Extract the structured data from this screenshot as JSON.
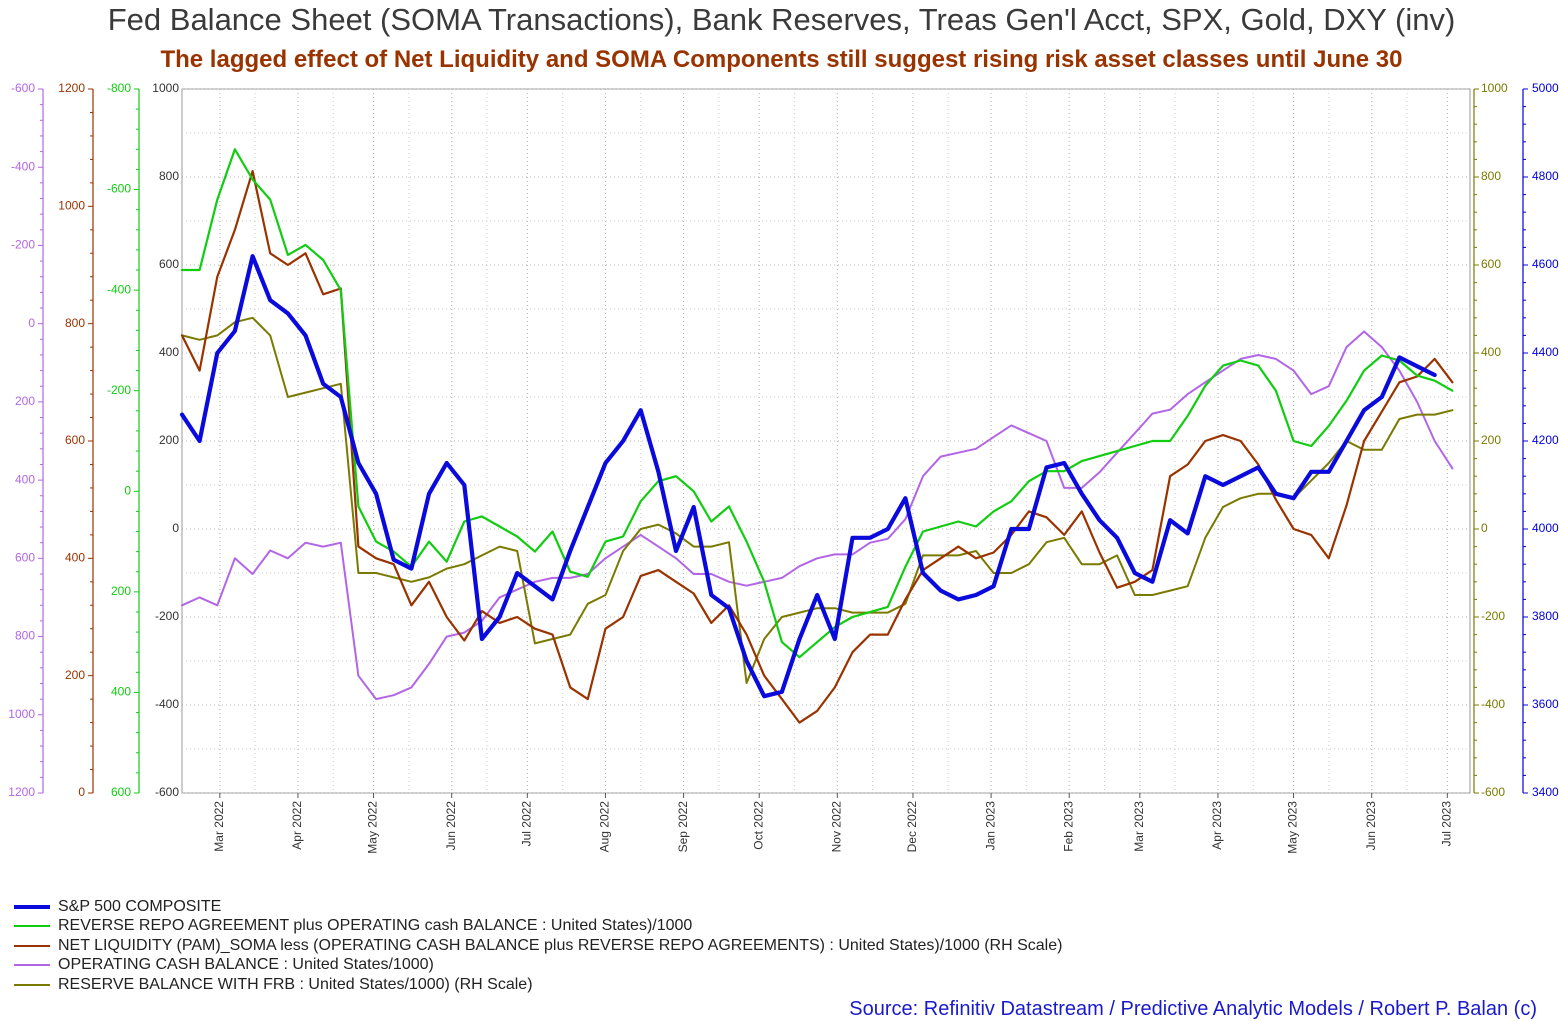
{
  "title": "Fed Balance Sheet (SOMA Transactions), Bank Reserves, Treas Gen'l Acct, SPX, Gold, DXY (inv)",
  "subtitle": "The lagged effect of Net Liquidity and SOMA Components still suggest rising risk asset classes until June 30",
  "source": "Source: Refinitiv Datastream / Predictive Analytic Models / Robert P. Balan (c)",
  "colors": {
    "spx": "#0a0adc",
    "green": "#11cc11",
    "brown": "#993300",
    "purple": "#b266e6",
    "olive": "#7a7a00",
    "blue_axis": "#0000dd"
  },
  "chart_data": {
    "type": "line",
    "x_labels": [
      "Mar 2022",
      "Apr 2022",
      "May 2022",
      "Jun 2022",
      "Jul 2022",
      "Aug 2022",
      "Sep 2022",
      "Oct 2022",
      "Nov 2022",
      "Dec 2022",
      "Jan 2023",
      "Feb 2023",
      "Mar 2023",
      "Apr 2023",
      "May 2023",
      "Jun 2023",
      "Jul 2023"
    ],
    "x_ticks": [
      "2022-03-01",
      "2022-04-01",
      "2022-05-01",
      "2022-06-01",
      "2022-07-01",
      "2022-08-01",
      "2022-09-01",
      "2022-10-01",
      "2022-11-01",
      "2022-12-01",
      "2023-01-01",
      "2023-02-01",
      "2023-03-01",
      "2023-04-01",
      "2023-05-01",
      "2023-06-01",
      "2023-07-01"
    ],
    "x_range": [
      "2022-02-14",
      "2023-07-10"
    ],
    "grid": true,
    "legend_position": "bottom-left",
    "axes": {
      "purple_inv": {
        "ticks": [
          "-600",
          "-400",
          "-200",
          "0",
          "200",
          "400",
          "600",
          "800",
          "1000",
          "1200"
        ],
        "range": [
          -600,
          1200
        ],
        "inverted": true
      },
      "brown_left": {
        "ticks": [
          "1200",
          "1000",
          "800",
          "600",
          "400",
          "200",
          "0"
        ],
        "range": [
          0,
          1200
        ]
      },
      "green_inv": {
        "ticks": [
          "-800",
          "-600",
          "-400",
          "-200",
          "0",
          "200",
          "400",
          "600"
        ],
        "range": [
          -800,
          600
        ],
        "inverted": true
      },
      "main_left": {
        "ticks": [
          "1000",
          "800",
          "600",
          "400",
          "200",
          "0",
          "-200",
          "-400",
          "-600"
        ],
        "range": [
          -600,
          1000
        ]
      },
      "olive_right": {
        "ticks": [
          "1000",
          "800",
          "600",
          "400",
          "200",
          "0",
          "-200",
          "-400",
          "-600"
        ],
        "range": [
          -600,
          1000
        ]
      },
      "spx_right": {
        "ticks": [
          "5000",
          "4800",
          "4600",
          "4400",
          "4200",
          "4000",
          "3800",
          "3600",
          "3400"
        ],
        "range": [
          3400,
          5000
        ]
      }
    },
    "series": [
      {
        "name": "S&P 500 COMPOSITE",
        "axis": "spx_right",
        "x": [
          "2022-02-14",
          "2022-02-21",
          "2022-02-28",
          "2022-03-07",
          "2022-03-14",
          "2022-03-21",
          "2022-03-28",
          "2022-04-04",
          "2022-04-11",
          "2022-04-18",
          "2022-04-25",
          "2022-05-02",
          "2022-05-09",
          "2022-05-16",
          "2022-05-23",
          "2022-05-30",
          "2022-06-06",
          "2022-06-13",
          "2022-06-20",
          "2022-06-27",
          "2022-07-04",
          "2022-07-11",
          "2022-07-18",
          "2022-07-25",
          "2022-08-01",
          "2022-08-08",
          "2022-08-15",
          "2022-08-22",
          "2022-08-29",
          "2022-09-05",
          "2022-09-12",
          "2022-09-19",
          "2022-09-26",
          "2022-10-03",
          "2022-10-10",
          "2022-10-17",
          "2022-10-24",
          "2022-10-31",
          "2022-11-07",
          "2022-11-14",
          "2022-11-21",
          "2022-11-28",
          "2022-12-05",
          "2022-12-12",
          "2022-12-19",
          "2022-12-26",
          "2023-01-02",
          "2023-01-09",
          "2023-01-16",
          "2023-01-23",
          "2023-01-30",
          "2023-02-06",
          "2023-02-13",
          "2023-02-20",
          "2023-02-27",
          "2023-03-06",
          "2023-03-13",
          "2023-03-20",
          "2023-03-27",
          "2023-04-03",
          "2023-04-10",
          "2023-04-17",
          "2023-04-24",
          "2023-05-01",
          "2023-05-08",
          "2023-05-15",
          "2023-05-22",
          "2023-05-29",
          "2023-06-05",
          "2023-06-12",
          "2023-06-19",
          "2023-06-26"
        ],
        "y": [
          4260,
          4200,
          4400,
          4450,
          4620,
          4520,
          4490,
          4440,
          4330,
          4300,
          4150,
          4080,
          3930,
          3910,
          4080,
          4150,
          4100,
          3750,
          3800,
          3900,
          3870,
          3840,
          3950,
          4050,
          4150,
          4200,
          4270,
          4130,
          3950,
          4050,
          3850,
          3820,
          3700,
          3620,
          3630,
          3750,
          3850,
          3750,
          3980,
          3980,
          4000,
          4070,
          3900,
          3860,
          3840,
          3850,
          3870,
          4000,
          4000,
          4140,
          4150,
          4080,
          4020,
          3980,
          3900,
          3880,
          4020,
          3990,
          4120,
          4100,
          4120,
          4140,
          4080,
          4070,
          4130,
          4130,
          4200,
          4270,
          4300,
          4390,
          4370,
          4350
        ]
      },
      {
        "name": "REVERSE REPO AGREEMENT plus OPERATING cash BALANCE : United States)/1000",
        "axis": "green_inv",
        "x": [
          "2022-02-14",
          "2022-02-21",
          "2022-02-28",
          "2022-03-07",
          "2022-03-14",
          "2022-03-21",
          "2022-03-28",
          "2022-04-04",
          "2022-04-11",
          "2022-04-18",
          "2022-04-25",
          "2022-05-02",
          "2022-05-09",
          "2022-05-16",
          "2022-05-23",
          "2022-05-30",
          "2022-06-06",
          "2022-06-13",
          "2022-06-20",
          "2022-06-27",
          "2022-07-04",
          "2022-07-11",
          "2022-07-18",
          "2022-07-25",
          "2022-08-01",
          "2022-08-08",
          "2022-08-15",
          "2022-08-22",
          "2022-08-29",
          "2022-09-05",
          "2022-09-12",
          "2022-09-19",
          "2022-09-26",
          "2022-10-03",
          "2022-10-10",
          "2022-10-17",
          "2022-10-24",
          "2022-10-31",
          "2022-11-07",
          "2022-11-14",
          "2022-11-21",
          "2022-11-28",
          "2022-12-05",
          "2022-12-12",
          "2022-12-19",
          "2022-12-26",
          "2023-01-02",
          "2023-01-09",
          "2023-01-16",
          "2023-01-23",
          "2023-01-30",
          "2023-02-06",
          "2023-02-13",
          "2023-02-20",
          "2023-02-27",
          "2023-03-06",
          "2023-03-13",
          "2023-03-20",
          "2023-03-27",
          "2023-04-03",
          "2023-04-10",
          "2023-04-17",
          "2023-04-24",
          "2023-05-01",
          "2023-05-08",
          "2023-05-15",
          "2023-05-22",
          "2023-05-29",
          "2023-06-05",
          "2023-06-12",
          "2023-06-19",
          "2023-06-26",
          "2023-07-03"
        ],
        "y": [
          -440,
          -440,
          -580,
          -680,
          -620,
          -580,
          -470,
          -490,
          -460,
          -400,
          30,
          100,
          120,
          150,
          100,
          140,
          60,
          50,
          70,
          90,
          120,
          80,
          160,
          170,
          100,
          90,
          20,
          -20,
          -30,
          0,
          60,
          30,
          100,
          180,
          300,
          330,
          300,
          270,
          250,
          240,
          230,
          150,
          80,
          70,
          60,
          70,
          40,
          20,
          -20,
          -40,
          -40,
          -60,
          -70,
          -80,
          -90,
          -100,
          -100,
          -150,
          -210,
          -250,
          -260,
          -250,
          -200,
          -100,
          -90,
          -130,
          -180,
          -240,
          -270,
          -260,
          -230,
          -220,
          -200
        ]
      },
      {
        "name": "NET LIQUIDITY (PAM)_SOMA less (OPERATING CASH BALANCE plus REVERSE REPO AGREEMENTS) : United States)/1000 (RH Scale)",
        "axis": "brown_left",
        "x": [
          "2022-02-14",
          "2022-02-21",
          "2022-02-28",
          "2022-03-07",
          "2022-03-14",
          "2022-03-21",
          "2022-03-28",
          "2022-04-04",
          "2022-04-11",
          "2022-04-18",
          "2022-04-25",
          "2022-05-02",
          "2022-05-09",
          "2022-05-16",
          "2022-05-23",
          "2022-05-30",
          "2022-06-06",
          "2022-06-13",
          "2022-06-20",
          "2022-06-27",
          "2022-07-04",
          "2022-07-11",
          "2022-07-18",
          "2022-07-25",
          "2022-08-01",
          "2022-08-08",
          "2022-08-15",
          "2022-08-22",
          "2022-08-29",
          "2022-09-05",
          "2022-09-12",
          "2022-09-19",
          "2022-09-26",
          "2022-10-03",
          "2022-10-10",
          "2022-10-17",
          "2022-10-24",
          "2022-10-31",
          "2022-11-07",
          "2022-11-14",
          "2022-11-21",
          "2022-11-28",
          "2022-12-05",
          "2022-12-12",
          "2022-12-19",
          "2022-12-26",
          "2023-01-02",
          "2023-01-09",
          "2023-01-16",
          "2023-01-23",
          "2023-01-30",
          "2023-02-06",
          "2023-02-13",
          "2023-02-20",
          "2023-02-27",
          "2023-03-06",
          "2023-03-13",
          "2023-03-20",
          "2023-03-27",
          "2023-04-03",
          "2023-04-10",
          "2023-04-17",
          "2023-04-24",
          "2023-05-01",
          "2023-05-08",
          "2023-05-15",
          "2023-05-22",
          "2023-05-29",
          "2023-06-05",
          "2023-06-12",
          "2023-06-19",
          "2023-06-26",
          "2023-07-03"
        ],
        "y": [
          780,
          720,
          880,
          960,
          1060,
          920,
          900,
          920,
          850,
          860,
          420,
          400,
          390,
          320,
          360,
          300,
          260,
          310,
          290,
          300,
          280,
          270,
          180,
          160,
          280,
          300,
          370,
          380,
          360,
          340,
          290,
          320,
          270,
          200,
          160,
          120,
          140,
          180,
          240,
          270,
          270,
          330,
          380,
          400,
          420,
          400,
          410,
          440,
          480,
          470,
          440,
          480,
          410,
          350,
          360,
          380,
          540,
          560,
          600,
          610,
          600,
          560,
          500,
          450,
          440,
          400,
          490,
          600,
          650,
          700,
          710,
          740,
          700
        ]
      },
      {
        "name": "OPERATING CASH BALANCE : United States/1000)",
        "axis": "purple_inv",
        "x": [
          "2022-02-14",
          "2022-02-21",
          "2022-02-28",
          "2022-03-07",
          "2022-03-14",
          "2022-03-21",
          "2022-03-28",
          "2022-04-04",
          "2022-04-11",
          "2022-04-18",
          "2022-04-25",
          "2022-05-02",
          "2022-05-09",
          "2022-05-16",
          "2022-05-23",
          "2022-05-30",
          "2022-06-06",
          "2022-06-13",
          "2022-06-20",
          "2022-06-27",
          "2022-07-04",
          "2022-07-11",
          "2022-07-18",
          "2022-07-25",
          "2022-08-01",
          "2022-08-08",
          "2022-08-15",
          "2022-08-22",
          "2022-08-29",
          "2022-09-05",
          "2022-09-12",
          "2022-09-19",
          "2022-09-26",
          "2022-10-03",
          "2022-10-10",
          "2022-10-17",
          "2022-10-24",
          "2022-10-31",
          "2022-11-07",
          "2022-11-14",
          "2022-11-21",
          "2022-11-28",
          "2022-12-05",
          "2022-12-12",
          "2022-12-19",
          "2022-12-26",
          "2023-01-02",
          "2023-01-09",
          "2023-01-16",
          "2023-01-23",
          "2023-01-30",
          "2023-02-06",
          "2023-02-13",
          "2023-02-20",
          "2023-02-27",
          "2023-03-06",
          "2023-03-13",
          "2023-03-20",
          "2023-03-27",
          "2023-04-03",
          "2023-04-10",
          "2023-04-17",
          "2023-04-24",
          "2023-05-01",
          "2023-05-08",
          "2023-05-15",
          "2023-05-22",
          "2023-05-29",
          "2023-06-05",
          "2023-06-12",
          "2023-06-19",
          "2023-06-26",
          "2023-07-03"
        ],
        "y": [
          720,
          700,
          720,
          600,
          640,
          580,
          600,
          560,
          570,
          560,
          900,
          960,
          950,
          930,
          870,
          800,
          790,
          760,
          700,
          680,
          660,
          650,
          650,
          640,
          600,
          570,
          540,
          570,
          600,
          640,
          640,
          660,
          670,
          660,
          650,
          620,
          600,
          590,
          590,
          560,
          550,
          500,
          390,
          340,
          330,
          320,
          290,
          260,
          280,
          300,
          420,
          420,
          380,
          330,
          280,
          230,
          220,
          180,
          150,
          120,
          90,
          80,
          90,
          120,
          180,
          160,
          60,
          20,
          60,
          120,
          200,
          300,
          370
        ]
      },
      {
        "name": "RESERVE BALANCE WITH FRB : United States/1000) (RH Scale)",
        "axis": "olive_right",
        "x": [
          "2022-02-14",
          "2022-02-21",
          "2022-02-28",
          "2022-03-07",
          "2022-03-14",
          "2022-03-21",
          "2022-03-28",
          "2022-04-04",
          "2022-04-11",
          "2022-04-18",
          "2022-04-25",
          "2022-05-02",
          "2022-05-09",
          "2022-05-16",
          "2022-05-23",
          "2022-05-30",
          "2022-06-06",
          "2022-06-13",
          "2022-06-20",
          "2022-06-27",
          "2022-07-04",
          "2022-07-11",
          "2022-07-18",
          "2022-07-25",
          "2022-08-01",
          "2022-08-08",
          "2022-08-15",
          "2022-08-22",
          "2022-08-29",
          "2022-09-05",
          "2022-09-12",
          "2022-09-19",
          "2022-09-26",
          "2022-10-03",
          "2022-10-10",
          "2022-10-17",
          "2022-10-24",
          "2022-10-31",
          "2022-11-07",
          "2022-11-14",
          "2022-11-21",
          "2022-11-28",
          "2022-12-05",
          "2022-12-12",
          "2022-12-19",
          "2022-12-26",
          "2023-01-02",
          "2023-01-09",
          "2023-01-16",
          "2023-01-23",
          "2023-01-30",
          "2023-02-06",
          "2023-02-13",
          "2023-02-20",
          "2023-02-27",
          "2023-03-06",
          "2023-03-13",
          "2023-03-20",
          "2023-03-27",
          "2023-04-03",
          "2023-04-10",
          "2023-04-17",
          "2023-04-24",
          "2023-05-01",
          "2023-05-08",
          "2023-05-15",
          "2023-05-22",
          "2023-05-29",
          "2023-06-05",
          "2023-06-12",
          "2023-06-19",
          "2023-06-26",
          "2023-07-03"
        ],
        "y": [
          440,
          430,
          440,
          470,
          480,
          440,
          300,
          310,
          320,
          330,
          -100,
          -100,
          -110,
          -120,
          -110,
          -90,
          -80,
          -60,
          -40,
          -50,
          -260,
          -250,
          -240,
          -170,
          -150,
          -50,
          0,
          10,
          -10,
          -40,
          -40,
          -30,
          -350,
          -250,
          -200,
          -190,
          -180,
          -180,
          -190,
          -190,
          -190,
          -170,
          -60,
          -60,
          -60,
          -50,
          -100,
          -100,
          -80,
          -30,
          -20,
          -80,
          -80,
          -60,
          -150,
          -150,
          -140,
          -130,
          -20,
          50,
          70,
          80,
          80,
          70,
          110,
          150,
          200,
          180,
          180,
          250,
          260,
          260,
          270
        ]
      }
    ]
  }
}
